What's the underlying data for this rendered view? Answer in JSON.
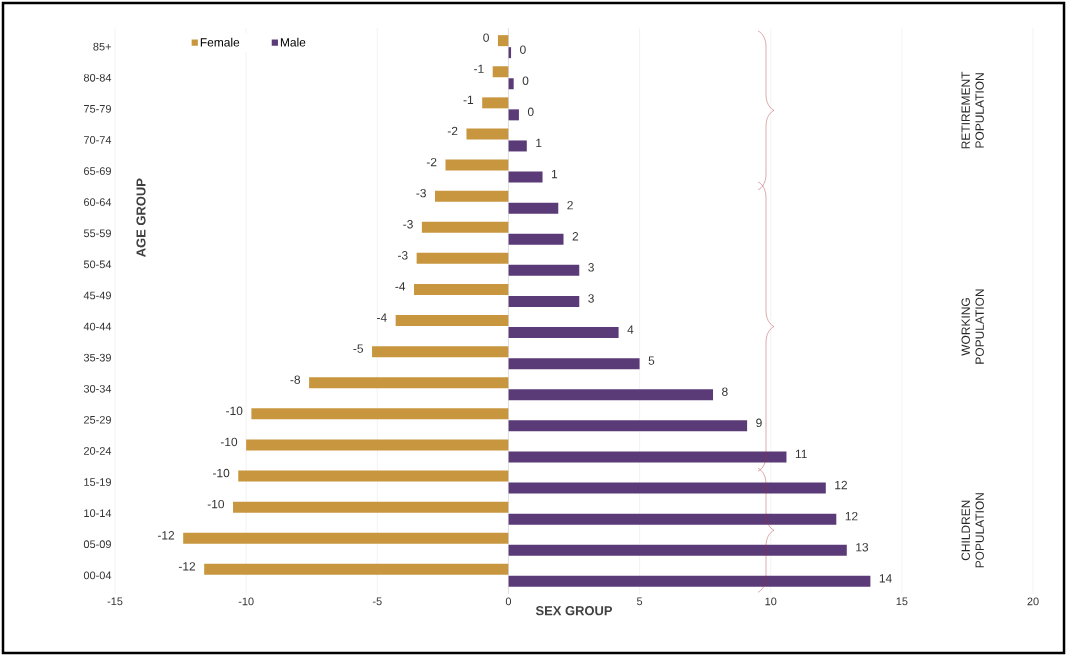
{
  "chart_data": {
    "type": "bar",
    "orientation": "horizontal",
    "xlabel": "SEX GROUP",
    "ylabel": "AGE GROUP",
    "categories": [
      "85+",
      "80-84",
      "75-79",
      "70-74",
      "65-69",
      "60-64",
      "55-59",
      "50-54",
      "45-49",
      "40-44",
      "35-39",
      "30-34",
      "25-29",
      "20-24",
      "15-19",
      "10-14",
      "05-09",
      "00-04"
    ],
    "series": [
      {
        "name": "Female",
        "color": "#c8963e",
        "values": [
          -0.4,
          -0.6,
          -1.0,
          -1.6,
          -2.4,
          -2.8,
          -3.3,
          -3.5,
          -3.6,
          -4.3,
          -5.2,
          -7.6,
          -9.8,
          -10.0,
          -10.3,
          -10.5,
          -12.4,
          -11.6
        ],
        "value_labels": [
          "0",
          "-1",
          "-1",
          "-2",
          "-2",
          "-3",
          "-3",
          "-3",
          "-4",
          "-4",
          "-5",
          "-8",
          "-10",
          "-10",
          "-10",
          "-10",
          "-12",
          "-12"
        ]
      },
      {
        "name": "Male",
        "color": "#5b3a78",
        "values": [
          0.1,
          0.2,
          0.4,
          0.7,
          1.3,
          1.9,
          2.1,
          2.7,
          2.7,
          4.2,
          5.0,
          7.8,
          9.1,
          10.6,
          12.1,
          12.5,
          12.9,
          13.8
        ],
        "value_labels": [
          "0",
          "0",
          "0",
          "1",
          "1",
          "2",
          "2",
          "3",
          "3",
          "4",
          "5",
          "8",
          "9",
          "11",
          "12",
          "12",
          "13",
          "14"
        ]
      }
    ],
    "xlim": [
      -15,
      20
    ],
    "xticks": [
      -15,
      -10,
      -5,
      0,
      5,
      10,
      15,
      20
    ],
    "grid": "x",
    "legend": "top left",
    "annotations": [
      "RETIREMENT POPULATION",
      "WORKING POPULATION",
      "CHILDREN POPULATION"
    ]
  }
}
